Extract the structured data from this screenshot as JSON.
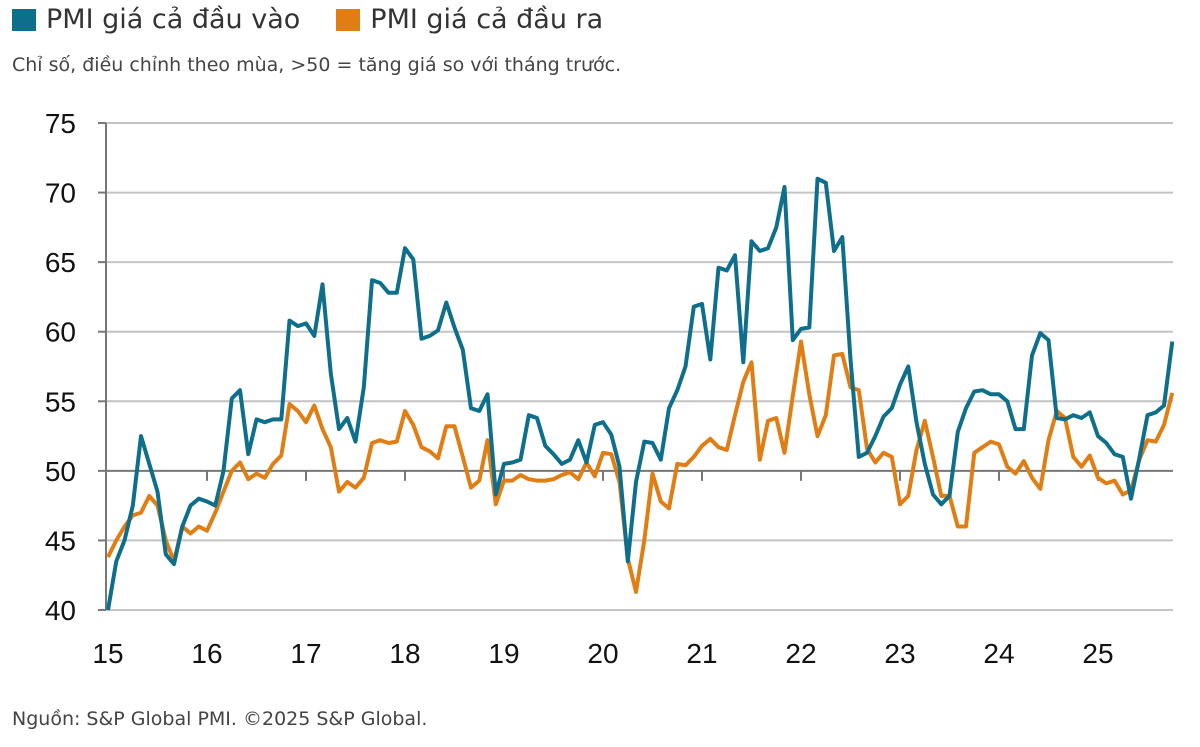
{
  "chart_data": {
    "type": "line",
    "title": "",
    "subtitle": "Chỉ số, điều chỉnh theo mùa, >50 = tăng giá so với tháng trước.",
    "source": "Nguồn: S&P Global PMI. ©2025 S&P Global.",
    "xlabel": "",
    "ylabel": "",
    "ylim": [
      40,
      75
    ],
    "yticks": [
      "40",
      "45",
      "50",
      "55",
      "60",
      "65",
      "70",
      "75"
    ],
    "xticks": [
      "15",
      "16",
      "17",
      "18",
      "19",
      "20",
      "21",
      "22",
      "23",
      "24",
      "25"
    ],
    "x_start": "2015-01",
    "frequency": "monthly",
    "grid": true,
    "legend_position": "top-left",
    "series": [
      {
        "name": "PMI giá cả đầu vào",
        "color": "#0e6f8c",
        "values": [
          40.0,
          43.5,
          45,
          47.5,
          52.5,
          50.5,
          48.5,
          44,
          43.3,
          46,
          47.5,
          48,
          47.8,
          47.5,
          50,
          55.2,
          55.8,
          51.2,
          53.7,
          53.5,
          53.7,
          53.7,
          60.8,
          60.4,
          60.6,
          59.7,
          63.4,
          57,
          53,
          53.8,
          52.1,
          56,
          63.7,
          63.5,
          62.8,
          62.8,
          66,
          65.2,
          59.5,
          59.7,
          60.1,
          62.1,
          60.3,
          58.7,
          54.5,
          54.3,
          55.5,
          48.3,
          50.5,
          50.6,
          50.8,
          54,
          53.8,
          51.8,
          51.2,
          50.5,
          50.8,
          52.2,
          50.6,
          53.3,
          53.5,
          52.6,
          50.3,
          43.5,
          49.2,
          52.1,
          52,
          50.8,
          54.5,
          55.8,
          57.5,
          61.8,
          62,
          58,
          64.6,
          64.4,
          65.5,
          57.8,
          66.5,
          65.8,
          66,
          67.5,
          70.4,
          59.4,
          60.2,
          60.3,
          71,
          70.7,
          65.8,
          66.8,
          58,
          51,
          51.3,
          52.5,
          53.9,
          54.5,
          56.2,
          57.5,
          53.5,
          50.5,
          48.3,
          47.6,
          48.2,
          52.8,
          54.5,
          55.7,
          55.8,
          55.5,
          55.5,
          55,
          53,
          53,
          58.3,
          59.9,
          59.4,
          53.8,
          53.7,
          54,
          53.8,
          54.2,
          52.5,
          52,
          51.2,
          51,
          48,
          50.9,
          54,
          54.2,
          54.7,
          59.3
        ]
      },
      {
        "name": "PMI giá cả đầu ra",
        "color": "#e07e14",
        "values": [
          43.8,
          45,
          46,
          46.8,
          47,
          48.2,
          47.5,
          45,
          43.5,
          46,
          45.5,
          46,
          45.7,
          47,
          48.5,
          50,
          50.6,
          49.4,
          49.8,
          49.5,
          50.5,
          51.1,
          54.8,
          54.3,
          53.5,
          54.7,
          53,
          51.7,
          48.5,
          49.2,
          48.8,
          49.5,
          52,
          52.2,
          52,
          52.1,
          54.3,
          53.3,
          51.7,
          51.4,
          50.9,
          53.2,
          53.2,
          51,
          48.8,
          49.3,
          52.2,
          47.6,
          49.3,
          49.3,
          49.7,
          49.4,
          49.3,
          49.3,
          49.4,
          49.7,
          49.9,
          49.4,
          50.6,
          49.6,
          51.3,
          51.2,
          49.2,
          43.7,
          41.3,
          45,
          49.8,
          47.8,
          47.3,
          50.5,
          50.4,
          51,
          51.8,
          52.3,
          51.7,
          51.5,
          54,
          56.4,
          57.8,
          50.8,
          53.6,
          53.8,
          51.3,
          55.4,
          59.3,
          55.5,
          52.5,
          54,
          58.3,
          58.4,
          56,
          55.8,
          51.6,
          50.6,
          51.3,
          51,
          47.6,
          48.2,
          51.5,
          53.6,
          51,
          48.2,
          48.2,
          46,
          46,
          51.3,
          51.7,
          52.1,
          51.9,
          50.3,
          49.8,
          50.7,
          49.5,
          48.7,
          52.2,
          54.3,
          53.8,
          51,
          50.3,
          51.1,
          49.5,
          49.1,
          49.3,
          48.3,
          48.6,
          50.8,
          52.2,
          52.1,
          53.3,
          55.6
        ]
      }
    ]
  }
}
